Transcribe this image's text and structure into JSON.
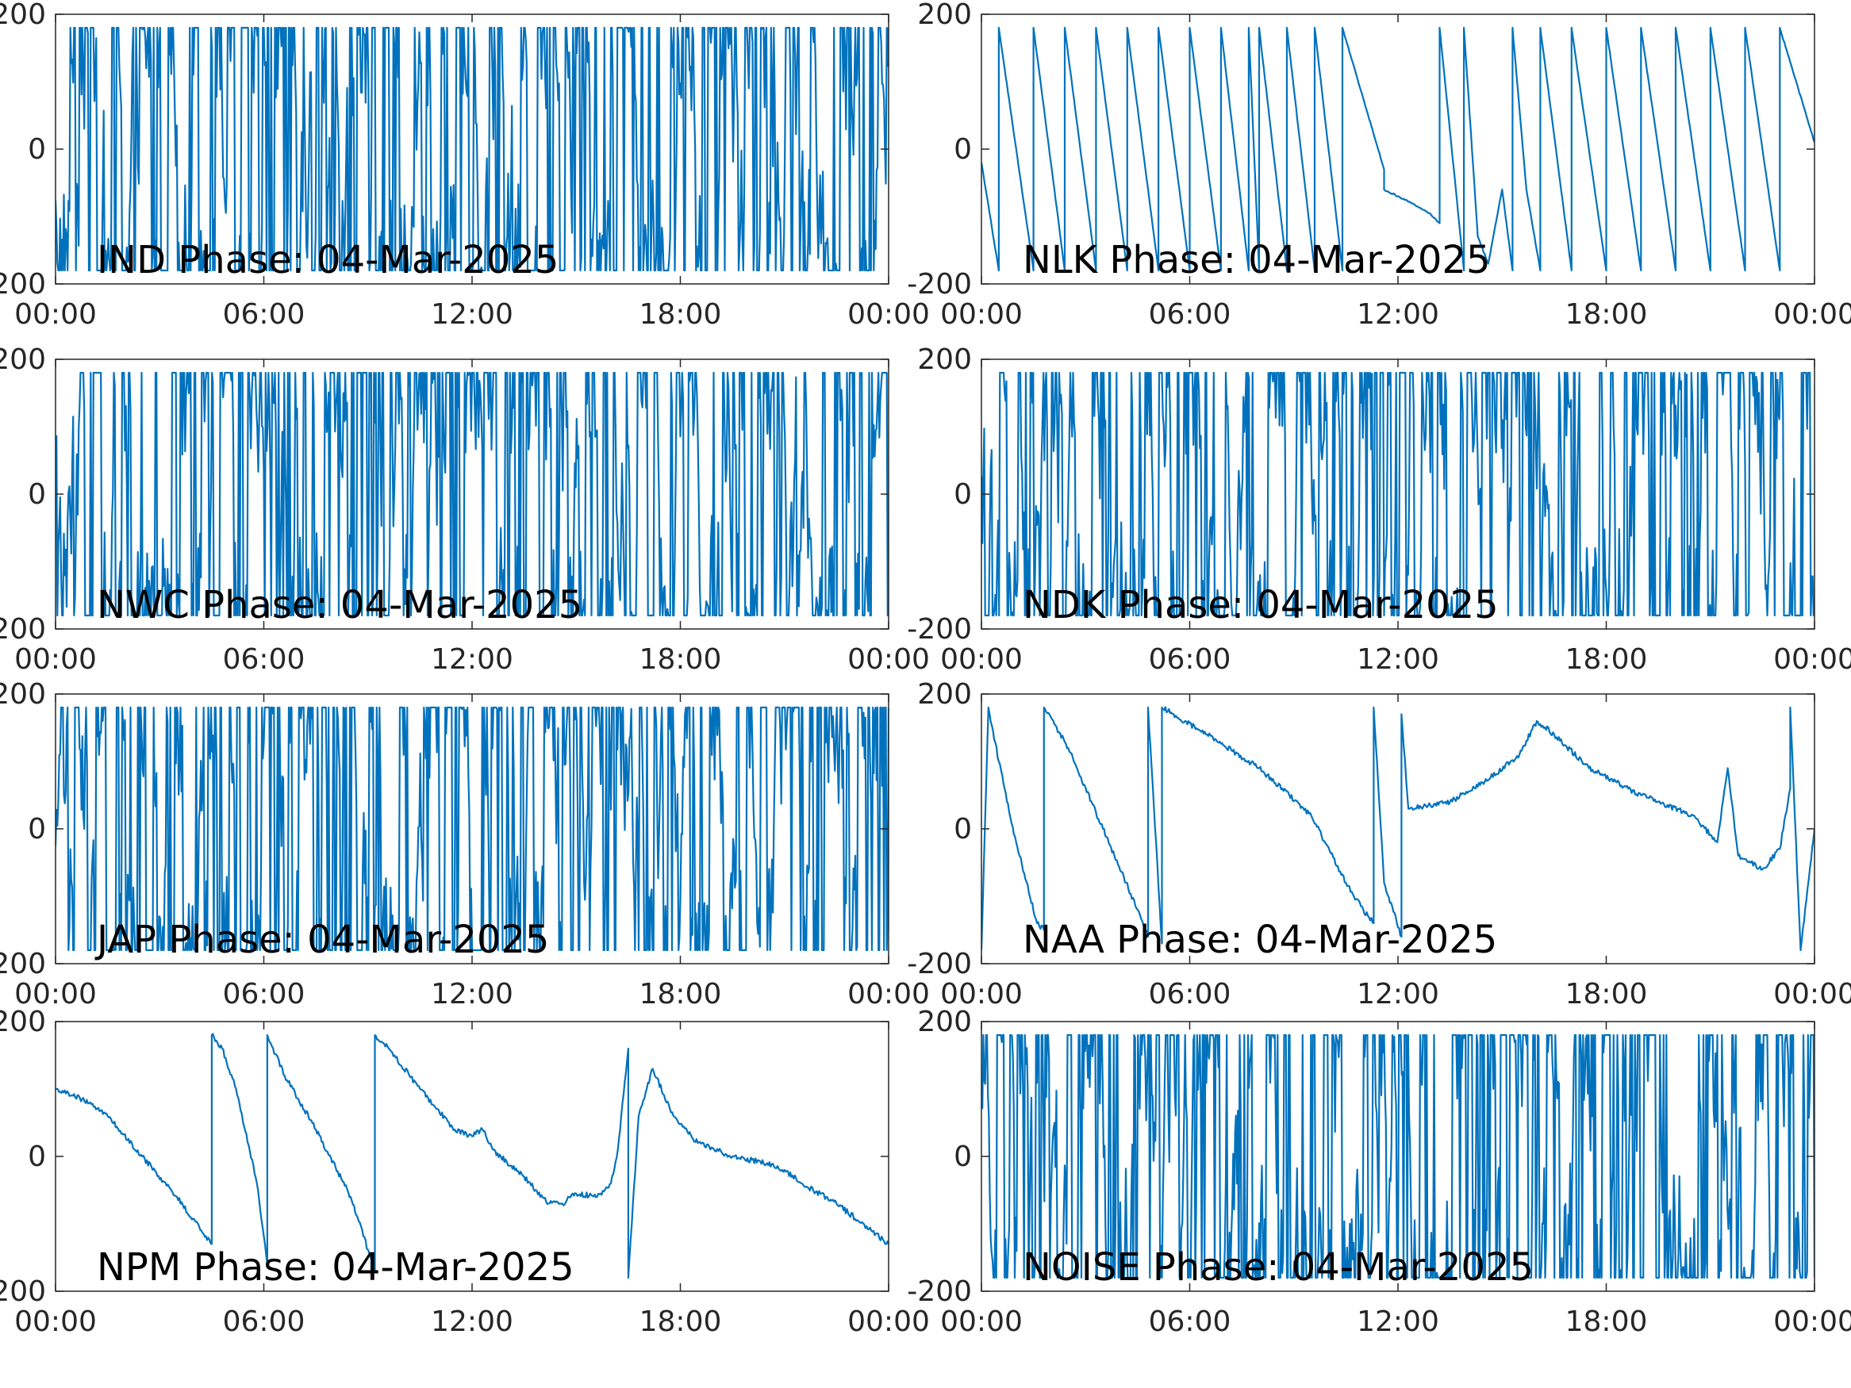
{
  "colors": {
    "line": "#0072BD",
    "axes": "#262626",
    "background": "#ffffff"
  },
  "chart_data": [
    {
      "type": "line",
      "title": "IND Phase: 04-Mar-2025",
      "ylim": [
        -200,
        200
      ],
      "yticks": [
        "-200",
        "0",
        "200"
      ],
      "xticks": [
        "00:00",
        "06:00",
        "12:00",
        "18:00",
        "00:00"
      ],
      "xlim_hours": [
        0,
        24
      ],
      "grid": false,
      "pattern": "noise",
      "series": [
        {
          "x_hours": [
            0,
            24
          ],
          "y": [
            0,
            0
          ]
        }
      ]
    },
    {
      "type": "line",
      "title": "NLK Phase: 04-Mar-2025",
      "ylim": [
        -200,
        200
      ],
      "yticks": [
        "-200",
        "0",
        "200"
      ],
      "xticks": [
        "00:00",
        "06:00",
        "12:00",
        "18:00",
        "00:00"
      ],
      "xlim_hours": [
        0,
        24
      ],
      "grid": false,
      "pattern": "wraps",
      "series": [
        {
          "x_hours": [
            0,
            0.5,
            0.5,
            1.5,
            1.5,
            2.4,
            2.4,
            3.3,
            3.3,
            4.2,
            4.2,
            5.1,
            5.1,
            6.0,
            6.0,
            6.9,
            6.9,
            7.7,
            7.7,
            7.85,
            8.0,
            8.0,
            8.8,
            8.8,
            9.6,
            9.6,
            10.4,
            10.4,
            11.6,
            11.6,
            12.4,
            12.9,
            13.2,
            13.2,
            13.9,
            13.9,
            14.3,
            14.6,
            15.0,
            15.3,
            15.3,
            15.7,
            16.1,
            16.1,
            17.0,
            17.0,
            18.0,
            18.0,
            19.0,
            19.0,
            20.0,
            20.0,
            21.0,
            21.0,
            22.0,
            22.0,
            23.0,
            23.0,
            24.0
          ],
          "y": [
            -20,
            -180,
            180,
            -180,
            180,
            -180,
            180,
            -180,
            180,
            -180,
            180,
            -180,
            180,
            -180,
            180,
            -180,
            180,
            -180,
            180,
            0,
            -180,
            180,
            -180,
            180,
            -180,
            180,
            -180,
            180,
            -30,
            -60,
            -80,
            -95,
            -110,
            180,
            -180,
            180,
            -130,
            -170,
            -60,
            -180,
            180,
            -60,
            -180,
            180,
            -180,
            180,
            -180,
            180,
            -180,
            180,
            -180,
            180,
            -180,
            180,
            -180,
            180,
            -180,
            180,
            10
          ]
        }
      ]
    },
    {
      "type": "line",
      "title": "NWC Phase: 04-Mar-2025",
      "ylim": [
        -200,
        200
      ],
      "yticks": [
        "-200",
        "0",
        "200"
      ],
      "xticks": [
        "00:00",
        "06:00",
        "12:00",
        "18:00",
        "00:00"
      ],
      "xlim_hours": [
        0,
        24
      ],
      "grid": false,
      "pattern": "noise",
      "series": [
        {
          "x_hours": [
            0,
            24
          ],
          "y": [
            0,
            0
          ]
        }
      ]
    },
    {
      "type": "line",
      "title": "NDK Phase: 04-Mar-2025",
      "ylim": [
        -200,
        200
      ],
      "yticks": [
        "-200",
        "0",
        "200"
      ],
      "xticks": [
        "00:00",
        "06:00",
        "12:00",
        "18:00",
        "00:00"
      ],
      "xlim_hours": [
        0,
        24
      ],
      "grid": false,
      "pattern": "noise",
      "series": [
        {
          "x_hours": [
            0,
            24
          ],
          "y": [
            0,
            0
          ]
        }
      ]
    },
    {
      "type": "line",
      "title": "JAP Phase: 04-Mar-2025",
      "ylim": [
        -200,
        200
      ],
      "yticks": [
        "-200",
        "0",
        "200"
      ],
      "xticks": [
        "00:00",
        "06:00",
        "12:00",
        "18:00",
        "00:00"
      ],
      "xlim_hours": [
        0,
        24
      ],
      "grid": false,
      "pattern": "noise",
      "series": [
        {
          "x_hours": [
            0,
            24
          ],
          "y": [
            0,
            0
          ]
        }
      ]
    },
    {
      "type": "line",
      "title": "NAA Phase: 04-Mar-2025",
      "ylim": [
        -200,
        200
      ],
      "yticks": [
        "-200",
        "0",
        "200"
      ],
      "xticks": [
        "00:00",
        "06:00",
        "12:00",
        "18:00",
        "00:00"
      ],
      "xlim_hours": [
        0,
        24
      ],
      "grid": false,
      "pattern": "trend",
      "series": [
        {
          "x_hours": [
            0,
            0.2,
            0.5,
            1.0,
            1.6,
            1.8,
            1.8,
            2.5,
            3.5,
            4.5,
            4.8,
            4.8,
            5.2,
            5.2,
            6.5,
            8.0,
            9.5,
            10.5,
            11.0,
            11.3,
            11.3,
            11.6,
            12.1,
            12.1,
            12.3,
            13.5,
            14.5,
            15.5,
            16.0,
            16.5,
            17.5,
            19.0,
            20.5,
            21.2,
            21.5,
            21.8,
            22.5,
            23.0,
            23.3,
            23.3,
            23.6,
            24.0
          ],
          "y": [
            -180,
            180,
            100,
            -20,
            -140,
            -150,
            180,
            120,
            0,
            -120,
            -160,
            180,
            -170,
            180,
            140,
            90,
            20,
            -80,
            -120,
            -140,
            180,
            -80,
            -160,
            170,
            30,
            40,
            70,
            110,
            160,
            140,
            90,
            50,
            20,
            -20,
            90,
            -40,
            -60,
            -30,
            60,
            180,
            -180,
            0
          ]
        }
      ]
    },
    {
      "type": "line",
      "title": "NPM Phase: 04-Mar-2025",
      "ylim": [
        -200,
        200
      ],
      "yticks": [
        "-200",
        "0",
        "200"
      ],
      "xticks": [
        "00:00",
        "06:00",
        "12:00",
        "18:00",
        "00:00"
      ],
      "xlim_hours": [
        0,
        24
      ],
      "grid": false,
      "pattern": "trend",
      "series": [
        {
          "x_hours": [
            0,
            0.5,
            1.0,
            1.5,
            2.5,
            3.5,
            4.2,
            4.5,
            4.5,
            4.8,
            5.2,
            5.8,
            6.1,
            6.1,
            6.6,
            7.5,
            8.5,
            9.2,
            9.2,
            9.6,
            10.5,
            11.5,
            12.0,
            12.3,
            12.6,
            13.5,
            14.2,
            14.6,
            15.0,
            15.6,
            16.0,
            16.2,
            16.5,
            16.5,
            16.8,
            17.2,
            17.8,
            18.5,
            19.5,
            20.5,
            21.0,
            21.5,
            22.5,
            23.5,
            24.0
          ],
          "y": [
            100,
            90,
            80,
            60,
            0,
            -60,
            -110,
            -130,
            180,
            160,
            100,
            -40,
            -160,
            180,
            120,
            40,
            -60,
            -170,
            180,
            160,
            100,
            40,
            30,
            40,
            10,
            -30,
            -70,
            -70,
            -55,
            -60,
            -40,
            10,
            160,
            -180,
            60,
            130,
            60,
            20,
            0,
            -10,
            -20,
            -40,
            -70,
            -110,
            -130
          ]
        }
      ]
    },
    {
      "type": "line",
      "title": "NOISE Phase: 04-Mar-2025",
      "ylim": [
        -200,
        200
      ],
      "yticks": [
        "-200",
        "0",
        "200"
      ],
      "xticks": [
        "00:00",
        "06:00",
        "12:00",
        "18:00",
        "00:00"
      ],
      "xlim_hours": [
        0,
        24
      ],
      "grid": false,
      "pattern": "noise",
      "series": [
        {
          "x_hours": [
            0,
            24
          ],
          "y": [
            0,
            0
          ]
        }
      ]
    }
  ]
}
